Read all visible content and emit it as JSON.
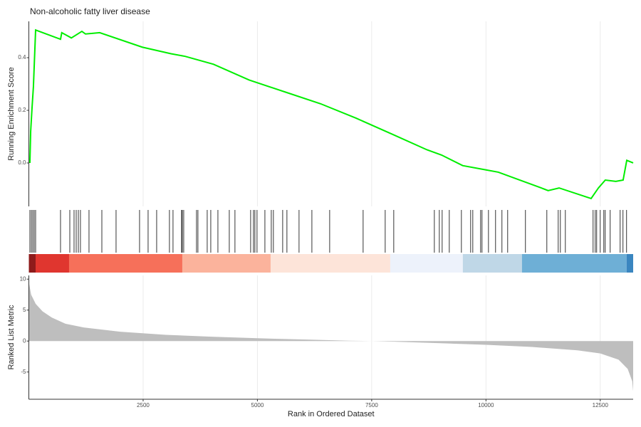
{
  "chart_data": [
    {
      "type": "line",
      "title": "Non-alcoholic fatty liver disease",
      "ylabel": "Running Enrichment Score",
      "x": [
        23,
        40,
        70,
        100,
        148,
        693,
        720,
        930,
        1160,
        1240,
        1550,
        2480,
        3110,
        3420,
        4040,
        4820,
        5600,
        6380,
        7160,
        7940,
        8710,
        9030,
        9490,
        9960,
        10270,
        11210,
        11360,
        11600,
        12300,
        12460,
        12610,
        12840,
        13000,
        13080,
        13220
      ],
      "values": [
        0,
        0.12,
        0.21,
        0.29,
        0.505,
        0.47,
        0.495,
        0.475,
        0.5,
        0.49,
        0.495,
        0.44,
        0.415,
        0.405,
        0.375,
        0.315,
        0.27,
        0.225,
        0.17,
        0.11,
        0.05,
        0.03,
        -0.01,
        -0.025,
        -0.035,
        -0.095,
        -0.105,
        -0.095,
        -0.135,
        -0.095,
        -0.065,
        -0.07,
        -0.065,
        0.01,
        0
      ],
      "color": "#00ee00",
      "xlim": [
        0,
        13220
      ],
      "ylim": [
        -0.165,
        0.538
      ],
      "yticks": [
        {
          "value": 0,
          "label": "0.0"
        },
        0.2,
        0.4
      ],
      "xticks": [
        2500,
        5000,
        7500,
        10000,
        12500
      ],
      "grid": true
    },
    {
      "type": "rug",
      "x": [
        23,
        55,
        86,
        117,
        148,
        693,
        896,
        989,
        1036,
        1083,
        1129,
        1316,
        1597,
        1908,
        2422,
        2609,
        2796,
        3076,
        3154,
        3341,
        3357,
        3388,
        3668,
        3699,
        3902,
        3980,
        4136,
        4385,
        4509,
        4852,
        4914,
        4945,
        4992,
        5164,
        5304,
        5350,
        5553,
        5646,
        5911,
        6192,
        6581,
        7313,
        7796,
        7983,
        8871,
        8980,
        9042,
        9198,
        9463,
        9665,
        9712,
        9883,
        9914,
        10055,
        10210,
        10350,
        10475,
        10864,
        11332,
        11581,
        11628,
        11737,
        12344,
        12391,
        12422,
        12500,
        12578,
        12609,
        12718,
        12936,
        12998,
        13076
      ],
      "color": "#000000",
      "xlim": [
        0,
        13220
      ],
      "band_edges": [
        0,
        148,
        880,
        3357,
        5289,
        7906,
        9494,
        10787,
        13076,
        13220
      ],
      "band_colors": [
        "#8e1b1b",
        "#e0362f",
        "#f6705a",
        "#fbb39c",
        "#fde4d9",
        "#edf2fb",
        "#bfd7e7",
        "#6eafd6",
        "#3a86c0"
      ]
    },
    {
      "type": "area",
      "xlabel": "Rank in Ordered Dataset",
      "ylabel": "Ranked List Metric",
      "x": [
        1,
        50,
        150,
        300,
        500,
        800,
        1200,
        2000,
        3000,
        4000,
        5000,
        6000,
        7000,
        7500,
        8000,
        9000,
        10000,
        11000,
        12000,
        12500,
        12900,
        13100,
        13200,
        13220
      ],
      "values": [
        9.5,
        7.5,
        6,
        4.8,
        3.8,
        2.8,
        2.2,
        1.5,
        1,
        0.7,
        0.45,
        0.25,
        0.05,
        0,
        -0.1,
        -0.35,
        -0.6,
        -0.95,
        -1.5,
        -2,
        -3,
        -4.5,
        -6.5,
        -8.1
      ],
      "color": "#bebebe",
      "xlim": [
        0,
        13220
      ],
      "ylim": [
        -9.4,
        10.6
      ],
      "yticks": [
        -5,
        0,
        5,
        10
      ],
      "xticks": [
        2500,
        5000,
        7500,
        10000,
        12500
      ],
      "grid": true
    }
  ]
}
